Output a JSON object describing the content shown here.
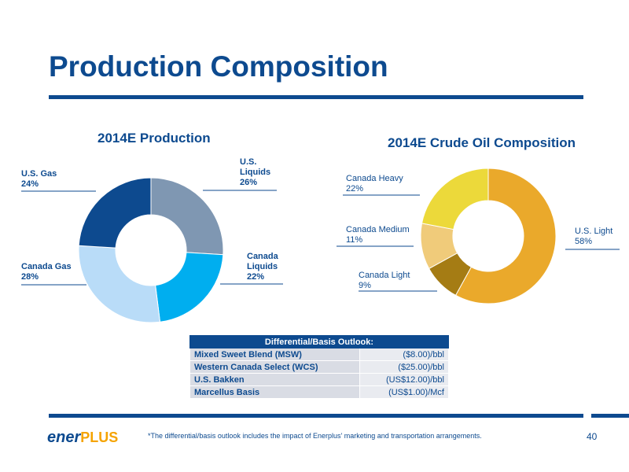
{
  "page": {
    "title": "Production Composition",
    "page_number": "40",
    "footnote": "*The differential/basis outlook includes the impact of Enerplus' marketing and transportation arrangements."
  },
  "logo": {
    "part1": "ener",
    "part2": "PLUS"
  },
  "chart_data": [
    {
      "type": "pie",
      "title": "2014E Production",
      "slices": [
        {
          "name": "U.S. Liquids",
          "label_lines": [
            "U.S.",
            "Liquids",
            "26%"
          ],
          "value": 26,
          "color": "#7f97b2"
        },
        {
          "name": "Canada Liquids",
          "label_lines": [
            "Canada",
            "Liquids",
            "22%"
          ],
          "value": 22,
          "color": "#00aeef"
        },
        {
          "name": "Canada Gas",
          "label_lines": [
            "Canada Gas",
            "28%"
          ],
          "value": 28,
          "color": "#b9dcf8"
        },
        {
          "name": "U.S. Gas",
          "label_lines": [
            "U.S. Gas",
            "24%"
          ],
          "value": 24,
          "color": "#0d4a8f"
        }
      ]
    },
    {
      "type": "pie",
      "title": "2014E Crude Oil Composition",
      "slices": [
        {
          "name": "U.S. Light",
          "label_lines": [
            "U.S. Light",
            "58%"
          ],
          "value": 58,
          "color": "#eaa92b"
        },
        {
          "name": "Canada Light",
          "label_lines": [
            "Canada Light",
            "9%"
          ],
          "value": 9,
          "color": "#a57c14"
        },
        {
          "name": "Canada Medium",
          "label_lines": [
            "Canada Medium",
            "11%"
          ],
          "value": 11,
          "color": "#f0cb7a"
        },
        {
          "name": "Canada Heavy",
          "label_lines": [
            "Canada Heavy",
            "22%"
          ],
          "value": 22,
          "color": "#ecd93a"
        }
      ]
    }
  ],
  "table": {
    "header": "Differential/Basis Outlook:",
    "rows": [
      {
        "name": "Mixed Sweet Blend (MSW)",
        "value": "($8.00)/bbl"
      },
      {
        "name": "Western Canada Select (WCS)",
        "value": "($25.00)/bbl"
      },
      {
        "name": "U.S. Bakken",
        "value": "(US$12.00)/bbl"
      },
      {
        "name": "Marcellus Basis",
        "value": "(US$1.00)/Mcf"
      }
    ]
  }
}
